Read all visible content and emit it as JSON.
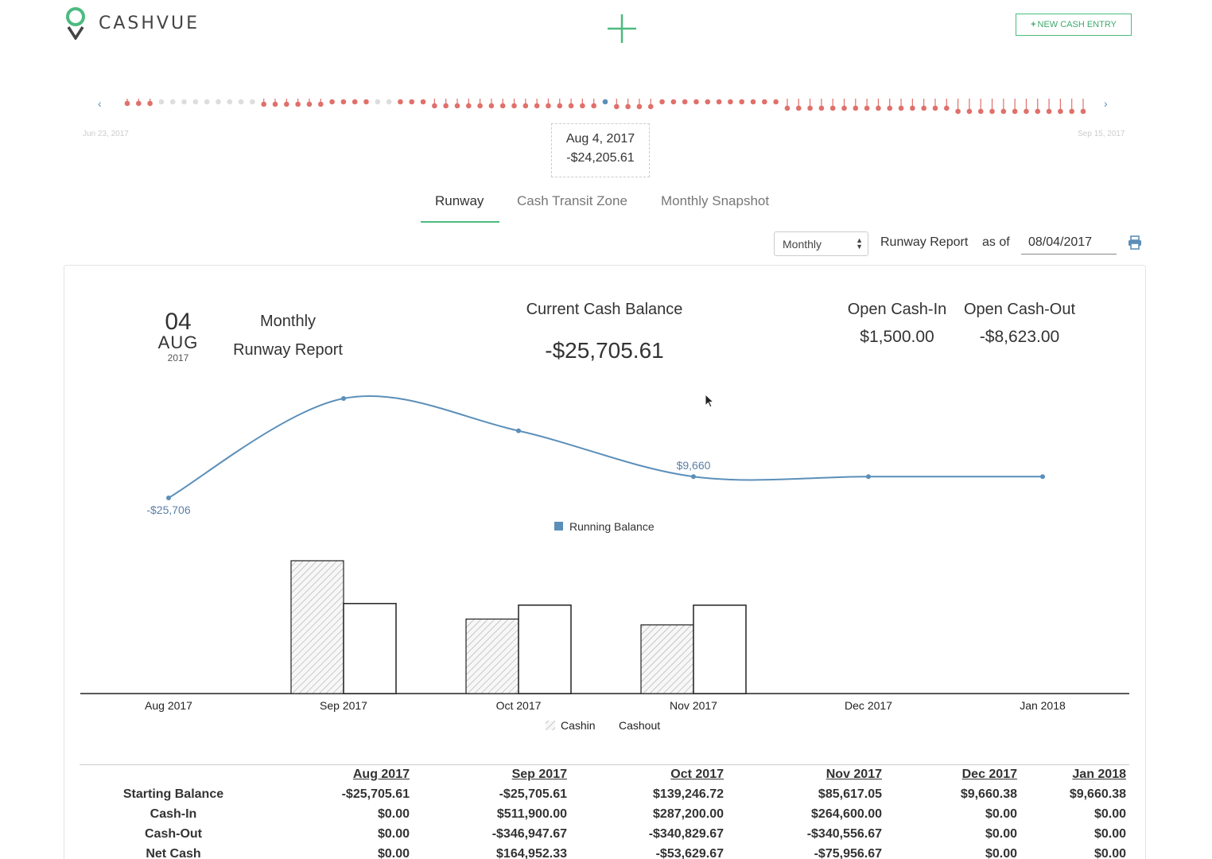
{
  "app": {
    "brand": "CASHVUE",
    "new_entry_label": "NEW CASH ENTRY",
    "accent_color": "#4cbb7f"
  },
  "timeline": {
    "start_date": "Jun 23, 2017",
    "end_date": "Sep 15, 2017",
    "selected_date": "Aug 4, 2017",
    "selected_value": "-$24,205.61",
    "dot_negative_color": "#e0706a",
    "dot_neutral_color": "#dddddd",
    "dot_selected_color": "#5b8fb9"
  },
  "tabs": [
    {
      "label": "Runway",
      "active": true
    },
    {
      "label": "Cash Transit Zone",
      "active": false
    },
    {
      "label": "Monthly Snapshot",
      "active": false
    }
  ],
  "controls": {
    "period": "Monthly",
    "report_label": "Runway Report",
    "as_of_label": "as of",
    "as_of_date": "08/04/2017"
  },
  "report": {
    "day": "04",
    "month": "AUG",
    "year": "2017",
    "title_line1": "Monthly",
    "title_line2": "Runway Report",
    "current_balance_label": "Current Cash Balance",
    "current_balance": "-$25,705.61",
    "open_in_label": "Open Cash-In",
    "open_in_value": "$1,500.00",
    "open_out_label": "Open Cash-Out",
    "open_out_value": "-$8,623.00"
  },
  "chart_data": [
    {
      "type": "line",
      "categories": [
        "Aug 2017",
        "Sep 2017",
        "Oct 2017",
        "Nov 2017",
        "Dec 2017",
        "Jan 2018"
      ],
      "series": [
        {
          "name": "Running Balance",
          "values": [
            -25706,
            139247,
            85617,
            9660,
            9660,
            9660
          ],
          "color": "#5b8fb9"
        }
      ],
      "data_labels": [
        {
          "index": 0,
          "text": "-$25,706"
        },
        {
          "index": 3,
          "text": "$9,660"
        }
      ],
      "legend": "bottom-center"
    },
    {
      "type": "bar",
      "categories": [
        "Aug 2017",
        "Sep 2017",
        "Oct 2017",
        "Nov 2017",
        "Dec 2017",
        "Jan 2018"
      ],
      "series": [
        {
          "name": "Cashin",
          "values": [
            0,
            511900,
            287200,
            264600,
            0,
            0
          ],
          "pattern": "hatched"
        },
        {
          "name": "Cashout",
          "values": [
            0,
            346947.67,
            340829.67,
            340556.67,
            0,
            0
          ],
          "pattern": "outline"
        }
      ],
      "legend": "bottom-center"
    }
  ],
  "table": {
    "columns": [
      "Aug 2017",
      "Sep 2017",
      "Oct 2017",
      "Nov 2017",
      "Dec 2017",
      "Jan 2018"
    ],
    "rows": [
      {
        "label": "Starting Balance",
        "values": [
          "-$25,705.61",
          "-$25,705.61",
          "$139,246.72",
          "$85,617.05",
          "$9,660.38",
          "$9,660.38"
        ]
      },
      {
        "label": "Cash-In",
        "values": [
          "$0.00",
          "$511,900.00",
          "$287,200.00",
          "$264,600.00",
          "$0.00",
          "$0.00"
        ]
      },
      {
        "label": "Cash-Out",
        "values": [
          "$0.00",
          "-$346,947.67",
          "-$340,829.67",
          "-$340,556.67",
          "$0.00",
          "$0.00"
        ]
      },
      {
        "label": "Net Cash",
        "values": [
          "$0.00",
          "$164,952.33",
          "-$53,629.67",
          "-$75,956.67",
          "$0.00",
          "$0.00"
        ]
      }
    ]
  }
}
